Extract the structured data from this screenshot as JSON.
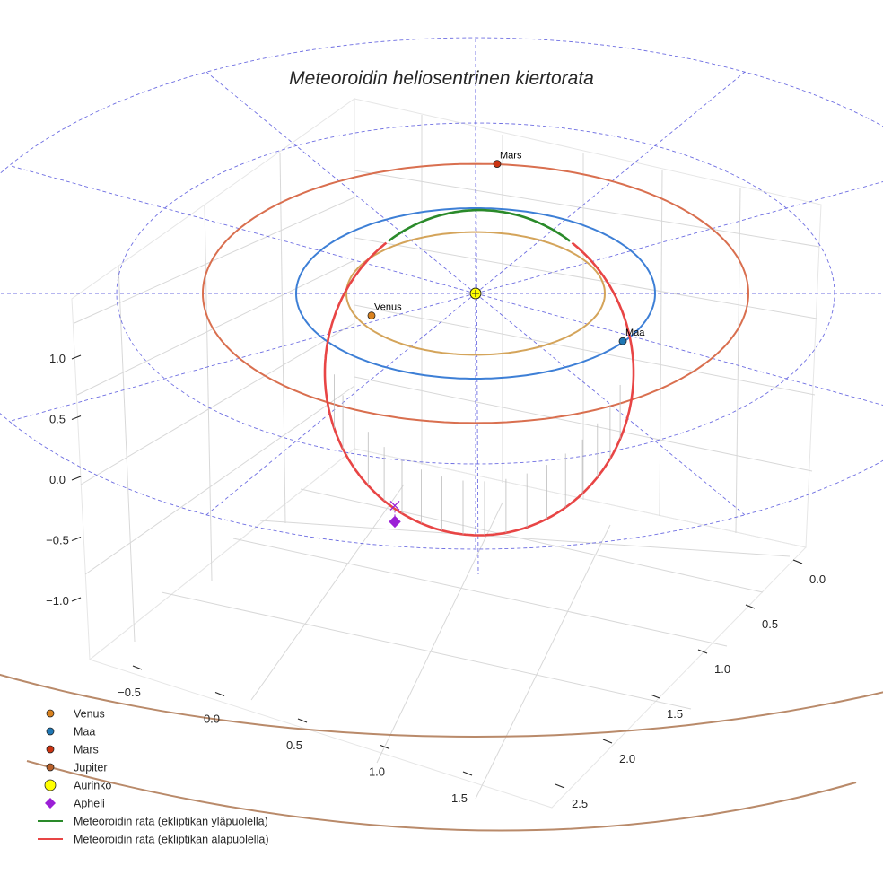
{
  "chart_data": {
    "type": "line",
    "title": "Meteoroidin heliosentrinen kiertorata",
    "projection": "3d",
    "axes": {
      "x": {
        "ticks": [
          "−0.5",
          "0.0",
          "0.5",
          "1.0",
          "1.5"
        ]
      },
      "y": {
        "ticks": [
          "0.0",
          "0.5",
          "1.0",
          "1.5",
          "2.0",
          "2.5"
        ]
      },
      "z": {
        "ticks": [
          "−1.0",
          "−0.5",
          "0.0",
          "0.5",
          "1.0"
        ]
      }
    },
    "grid": true,
    "legend_position": "bottom-left",
    "orbits": [
      {
        "name": "Venus",
        "semi_major_axis_au": 0.72,
        "color": "#d4a45a"
      },
      {
        "name": "Maa",
        "semi_major_axis_au": 1.0,
        "color": "#3d7fd6"
      },
      {
        "name": "Mars",
        "semi_major_axis_au": 1.52,
        "color": "#d96f4f"
      },
      {
        "name": "Jupiter",
        "semi_major_axis_au": 5.2,
        "color": "#b98a6a"
      }
    ],
    "planets": [
      {
        "name": "Venus",
        "label": "Venus",
        "color": "#d9821f",
        "x": -0.58,
        "y": -0.26,
        "z": 0.0
      },
      {
        "name": "Maa",
        "label": "Maa",
        "color": "#1f77b4",
        "x": 0.82,
        "y": -0.56,
        "z": 0.0
      },
      {
        "name": "Mars",
        "label": "Mars",
        "color": "#cc3311",
        "x": 0.12,
        "y": 1.52,
        "z": 0.0
      }
    ],
    "meteoroid_orbit": {
      "center": [
        0.02,
        -0.2,
        -0.55
      ],
      "semi_axes": [
        0.86,
        1.0
      ],
      "tilt_z": 0.72,
      "above_color": "#2a8a2a",
      "below_color": "#e84545"
    },
    "aphelion": {
      "x": -0.45,
      "y": -1.02,
      "z": -1.25,
      "color": "#9b1fd6"
    },
    "aphelion_projection": {
      "x": -0.45,
      "y": -1.02,
      "z": 0.0,
      "color": "#9b1fd6"
    },
    "sun": {
      "x": 0,
      "y": 0,
      "z": 0,
      "color": "#ffff00"
    },
    "ecliptic_grid": {
      "radii_au": [
        1.0,
        2.0,
        3.0
      ],
      "spokes": 12,
      "color": "#5555dd"
    },
    "legend": [
      {
        "label": "Venus",
        "marker": "circle",
        "color": "#d9821f"
      },
      {
        "label": "Maa",
        "marker": "circle",
        "color": "#1f77b4"
      },
      {
        "label": "Mars",
        "marker": "circle",
        "color": "#cc3311"
      },
      {
        "label": "Jupiter",
        "marker": "circle",
        "color": "#b9602a"
      },
      {
        "label": "Aurinko",
        "marker": "big-circle",
        "color": "#ffff00"
      },
      {
        "label": "Apheli",
        "marker": "diamond",
        "color": "#9b1fd6"
      },
      {
        "label": "Meteoroidin rata (ekliptikan yläpuolella)",
        "marker": "line",
        "color": "#2a8a2a"
      },
      {
        "label": "Meteoroidin rata (ekliptikan alapuolella)",
        "marker": "line",
        "color": "#e84545"
      }
    ]
  }
}
